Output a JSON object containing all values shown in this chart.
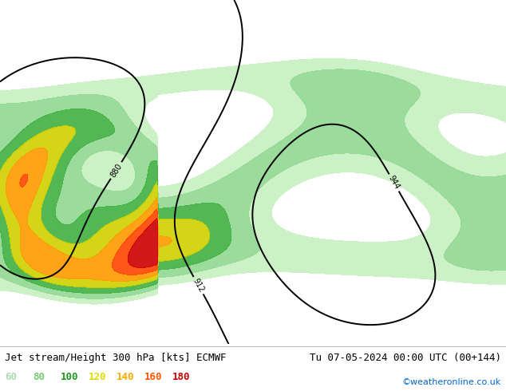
{
  "title_left": "Jet stream/Height 300 hPa [kts] ECMWF",
  "title_right": "Tu 07-05-2024 00:00 UTC (00+144)",
  "credit": "©weatheronline.co.uk",
  "legend_values": [
    "60",
    "80",
    "100",
    "120",
    "140",
    "160",
    "180"
  ],
  "legend_colors": [
    "#aaddaa",
    "#77cc77",
    "#33aa33",
    "#cccc00",
    "#ffaa00",
    "#ff5500",
    "#cc0000"
  ],
  "legend_colors_display": [
    "#b0d8b0",
    "#78c878",
    "#229922",
    "#dddd00",
    "#ffaa00",
    "#ff5500",
    "#cc0000"
  ],
  "sea_color": "#c8c8c8",
  "land_color": "#c8e8c0",
  "jet_colors": [
    "#c8f0c0",
    "#90d890",
    "#40b040",
    "#d0d000",
    "#ff9900",
    "#ff4400",
    "#cc0000"
  ],
  "jet_levels": [
    60,
    80,
    100,
    120,
    140,
    160,
    180,
    220
  ],
  "contour_levels": [
    880,
    912,
    944
  ],
  "contour_color": "#000000",
  "contour_linewidth": 1.4,
  "border_color": "#aaaaaa",
  "border_lw": 0.5,
  "figsize": [
    6.34,
    4.9
  ],
  "dpi": 100,
  "bottom_bar_color": "#eeeeee",
  "font_size_title": 9,
  "font_size_legend": 9,
  "xlim": [
    -30,
    50
  ],
  "ylim": [
    25,
    80
  ]
}
